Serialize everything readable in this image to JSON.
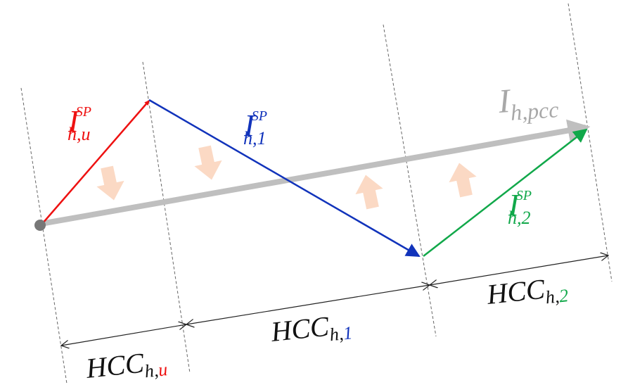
{
  "colors": {
    "red": "#ee1111",
    "blue": "#1133bb",
    "green": "#11a84a",
    "gray": "#bfbfbf",
    "dot": "#777777",
    "shade": "#fbd9c4",
    "dim": "#222222"
  },
  "labels": {
    "i_u": {
      "main": "I",
      "sub": "h,u",
      "sup": "SP"
    },
    "i_1": {
      "main": "I",
      "sub": "h,1",
      "sup": "SP"
    },
    "i_2": {
      "main": "I",
      "sub": "h,2",
      "sup": "SP"
    },
    "i_pcc": {
      "main": "I",
      "sub": "h,pcc"
    },
    "hcc_u": {
      "main": "HCC",
      "sub_a": "h,",
      "sub_b": "u"
    },
    "hcc_1": {
      "main": "HCC",
      "sub_a": "h,",
      "sub_b": "1"
    },
    "hcc_2": {
      "main": "HCC",
      "sub_a": "h,",
      "sub_b": "2"
    }
  }
}
